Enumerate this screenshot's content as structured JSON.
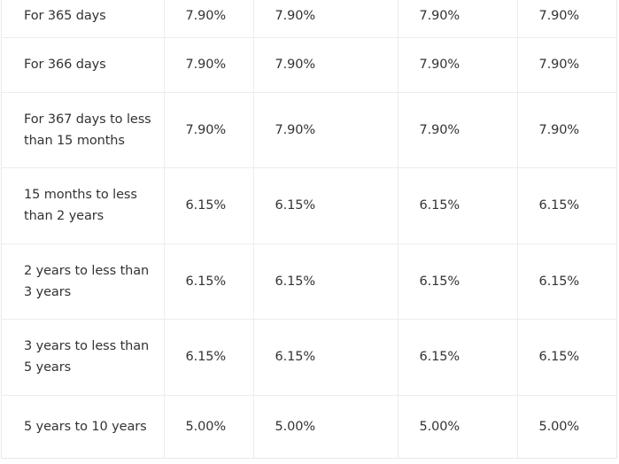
{
  "fd_rates_table": {
    "rows": [
      {
        "tenure": "For 365 days",
        "rates": [
          "7.90%",
          "7.90%",
          "7.90%",
          "7.90%"
        ]
      },
      {
        "tenure": "For 366 days",
        "rates": [
          "7.90%",
          "7.90%",
          "7.90%",
          "7.90%"
        ]
      },
      {
        "tenure": "For 367 days to less than 15 months",
        "rates": [
          "7.90%",
          "7.90%",
          "7.90%",
          "7.90%"
        ]
      },
      {
        "tenure": "15 months to less than 2 years",
        "rates": [
          "6.15%",
          "6.15%",
          "6.15%",
          "6.15%"
        ]
      },
      {
        "tenure": "2 years to less than 3 years",
        "rates": [
          "6.15%",
          "6.15%",
          "6.15%",
          "6.15%"
        ]
      },
      {
        "tenure": "3 years to less than 5 years",
        "rates": [
          "6.15%",
          "6.15%",
          "6.15%",
          "6.15%"
        ]
      },
      {
        "tenure": "5 years to 10 years",
        "rates": [
          "5.00%",
          "5.00%",
          "5.00%",
          "5.00%"
        ]
      }
    ]
  }
}
